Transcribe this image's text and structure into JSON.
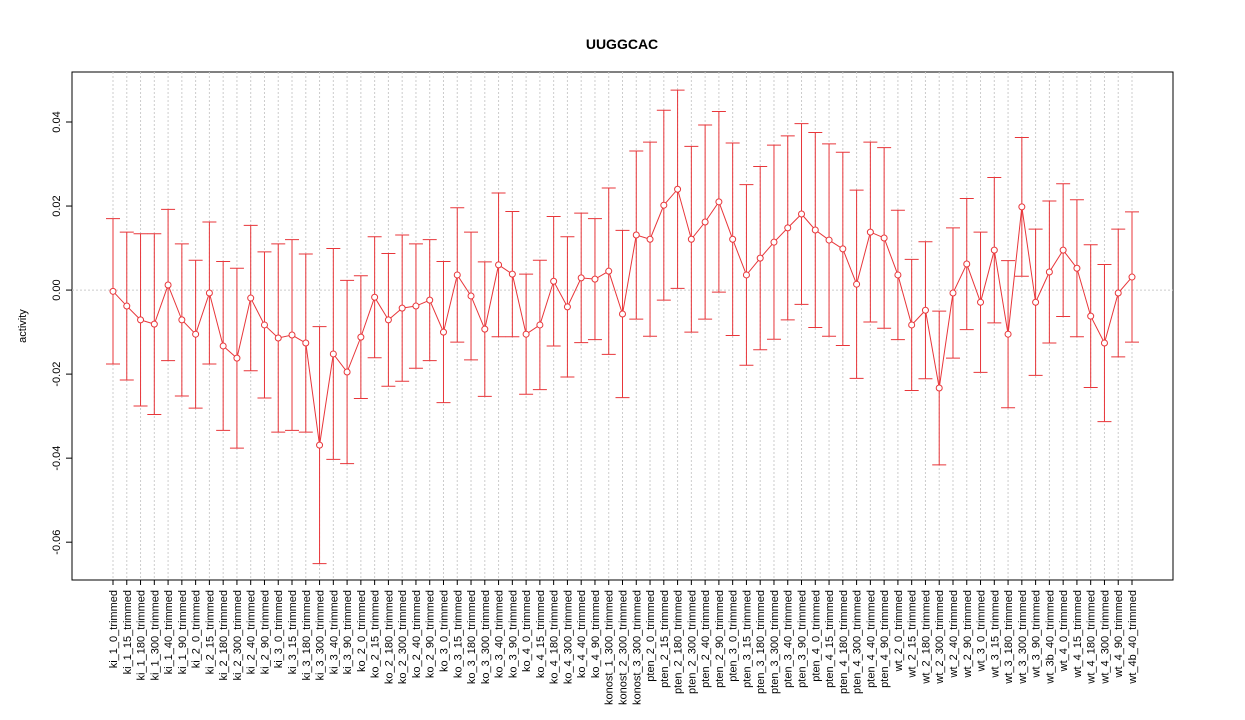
{
  "chart_data": {
    "type": "errorbar",
    "title": "UUGGCAC",
    "y_label": "activity",
    "color": "#e8363a",
    "grid": true,
    "categories": [
      "ki_1_0_trimmed",
      "ki_1_15_trimmed",
      "ki_1_180_trimmed",
      "ki_1_300_trimmed",
      "ki_1_40_trimmed",
      "ki_1_90_trimmed",
      "ki_2_0_trimmed",
      "ki_2_15_trimmed",
      "ki_2_180_trimmed",
      "ki_2_300_trimmed",
      "ki_2_40_trimmed",
      "ki_2_90_trimmed",
      "ki_3_0_trimmed",
      "ki_3_15_trimmed",
      "ki_3_180_trimmed",
      "ki_3_300_trimmed",
      "ki_3_40_trimmed",
      "ki_3_90_trimmed",
      "ko_2_0_trimmed",
      "ko_2_15_trimmed",
      "ko_2_180_trimmed",
      "ko_2_300_trimmed",
      "ko_2_40_trimmed",
      "ko_2_90_trimmed",
      "ko_3_0_trimmed",
      "ko_3_15_trimmed",
      "ko_3_180_trimmed",
      "ko_3_300_trimmed",
      "ko_3_40_trimmed",
      "ko_3_90_trimmed",
      "ko_4_0_trimmed",
      "ko_4_15_trimmed",
      "ko_4_180_trimmed",
      "ko_4_300_trimmed",
      "ko_4_40_trimmed",
      "ko_4_90_trimmed",
      "konost_1_300_trimmed",
      "konost_2_300_trimmed",
      "konost_3_300_trimmed",
      "pten_2_0_trimmed",
      "pten_2_15_trimmed",
      "pten_2_180_trimmed",
      "pten_2_300_trimmed",
      "pten_2_40_trimmed",
      "pten_2_90_trimmed",
      "pten_3_0_trimmed",
      "pten_3_15_trimmed",
      "pten_3_180_trimmed",
      "pten_3_300_trimmed",
      "pten_3_40_trimmed",
      "pten_3_90_trimmed",
      "pten_4_0_trimmed",
      "pten_4_15_trimmed",
      "pten_4_180_trimmed",
      "pten_4_300_trimmed",
      "pten_4_40_trimmed",
      "pten_4_90_trimmed",
      "wt_2_0_trimmed",
      "wt_2_15_trimmed",
      "wt_2_180_trimmed",
      "wt_2_300_trimmed",
      "wt_2_40_trimmed",
      "wt_2_90_trimmed",
      "wt_3_0_trimmed",
      "wt_3_15_trimmed",
      "wt_3_180_trimmed",
      "wt_3_300_trimmed",
      "wt_3_90_trimmed",
      "wt_3b_40_trimmed",
      "wt_4_0_trimmed",
      "wt_4_15_trimmed",
      "wt_4_180_trimmed",
      "wt_4_300_trimmed",
      "wt_4_90_trimmed",
      "wt_4b_40_trimmed"
    ],
    "values": [
      -0.0003,
      -0.0038,
      -0.0071,
      -0.0081,
      0.0012,
      -0.0071,
      -0.0105,
      -0.0007,
      -0.0133,
      -0.0162,
      -0.0019,
      -0.0083,
      -0.0114,
      -0.0107,
      -0.0126,
      -0.0369,
      -0.0152,
      -0.0195,
      -0.0112,
      -0.0017,
      -0.0071,
      -0.0043,
      -0.0038,
      -0.0024,
      -0.01,
      0.0036,
      -0.0014,
      -0.0093,
      0.006,
      0.0038,
      -0.0105,
      -0.0083,
      0.0021,
      -0.004,
      0.0029,
      0.0026,
      0.0045,
      -0.0057,
      0.0131,
      0.0121,
      0.0202,
      0.024,
      0.0121,
      0.0162,
      0.021,
      0.0121,
      0.0036,
      0.0076,
      0.0114,
      0.0148,
      0.0181,
      0.0143,
      0.0119,
      0.0098,
      0.0014,
      0.0138,
      0.0124,
      0.0036,
      -0.0083,
      -0.0048,
      -0.0233,
      -0.0007,
      0.0062,
      -0.0029,
      0.0095,
      -0.0105,
      0.0198,
      -0.0029,
      0.0043,
      0.0095,
      0.0052,
      -0.0062,
      -0.0126,
      -0.0007,
      0.0031
    ],
    "errors": [
      0.0173,
      0.0176,
      0.0205,
      0.0215,
      0.018,
      0.0181,
      0.0176,
      0.0169,
      0.0201,
      0.0214,
      0.0173,
      0.0174,
      0.0224,
      0.0227,
      0.0212,
      0.0282,
      0.0251,
      0.0218,
      0.0146,
      0.0144,
      0.0158,
      0.0174,
      0.0148,
      0.0144,
      0.0168,
      0.016,
      0.0152,
      0.016,
      0.0171,
      0.0149,
      0.0143,
      0.0154,
      0.0154,
      0.0167,
      0.0154,
      0.0144,
      0.0198,
      0.0199,
      0.02,
      0.0231,
      0.0226,
      0.0236,
      0.0221,
      0.0231,
      0.0215,
      0.0229,
      0.0215,
      0.0218,
      0.0231,
      0.0219,
      0.0215,
      0.0232,
      0.0229,
      0.023,
      0.0224,
      0.0214,
      0.0215,
      0.0154,
      0.0156,
      0.0163,
      0.0183,
      0.0155,
      0.0156,
      0.0167,
      0.0173,
      0.0175,
      0.0165,
      0.0174,
      0.0169,
      0.0158,
      0.0163,
      0.017,
      0.0187,
      0.0152,
      0.0155
    ],
    "ylim": [
      -0.069,
      0.0519
    ],
    "yticks": [
      -0.06,
      -0.04,
      -0.02,
      {
        "value": 0,
        "label": "0.00"
      },
      0.02,
      0.04
    ]
  }
}
